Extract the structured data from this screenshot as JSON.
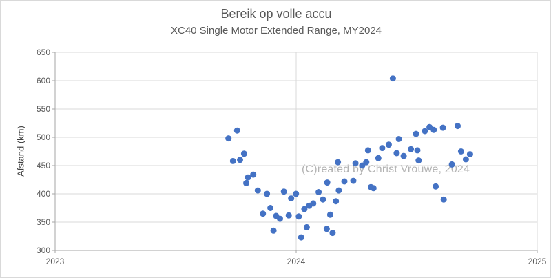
{
  "chart": {
    "title": "Bereik op volle accu",
    "subtitle": "XC40 Single Motor Extended Range, MY2024",
    "y_axis_title": "Afstand (km)",
    "watermark": "(C)reated by Christ Vrouwe, 2024"
  },
  "colors": {
    "marker": "#4472c4",
    "gridline": "#d9d9d9",
    "axis": "#a6a6a6",
    "tick_text": "#595959",
    "title_text": "#595959",
    "watermark_text": "#b3b3b3"
  },
  "chart_data": {
    "type": "scatter",
    "title": "Bereik op volle accu",
    "subtitle": "XC40 Single Motor Extended Range, MY2024",
    "xlabel": "",
    "ylabel": "Afstand (km)",
    "xlim": [
      2023,
      2025
    ],
    "ylim": [
      300,
      650
    ],
    "xticks": [
      2023,
      2024,
      2025
    ],
    "yticks": [
      300,
      350,
      400,
      450,
      500,
      550,
      600,
      650
    ],
    "grid": true,
    "legend": false,
    "marker_radius": 4.5,
    "annotations": [
      {
        "text": "(C)reated by Christ Vrouwe, 2024",
        "color": "#b3b3b3"
      }
    ],
    "series": [
      {
        "name": "Bereik op volle accu (km)",
        "points": [
          [
            2023.719,
            498
          ],
          [
            2023.738,
            458
          ],
          [
            2023.755,
            512
          ],
          [
            2023.767,
            460
          ],
          [
            2023.784,
            471
          ],
          [
            2023.793,
            419
          ],
          [
            2023.8,
            429
          ],
          [
            2023.822,
            434
          ],
          [
            2023.841,
            406
          ],
          [
            2023.862,
            365
          ],
          [
            2023.879,
            400
          ],
          [
            2023.893,
            375
          ],
          [
            2023.906,
            335
          ],
          [
            2023.917,
            361
          ],
          [
            2023.933,
            356
          ],
          [
            2023.949,
            404
          ],
          [
            2023.969,
            362
          ],
          [
            2023.979,
            392
          ],
          [
            2023.999,
            400
          ],
          [
            2024.011,
            360
          ],
          [
            2024.021,
            323
          ],
          [
            2024.034,
            373
          ],
          [
            2024.044,
            341
          ],
          [
            2024.054,
            379
          ],
          [
            2024.071,
            383
          ],
          [
            2024.093,
            403
          ],
          [
            2024.111,
            390
          ],
          [
            2024.127,
            338
          ],
          [
            2024.129,
            420
          ],
          [
            2024.141,
            363
          ],
          [
            2024.151,
            331
          ],
          [
            2024.165,
            387
          ],
          [
            2024.173,
            456
          ],
          [
            2024.177,
            406
          ],
          [
            2024.2,
            422
          ],
          [
            2024.237,
            423
          ],
          [
            2024.246,
            454
          ],
          [
            2024.274,
            450
          ],
          [
            2024.291,
            456
          ],
          [
            2024.298,
            477
          ],
          [
            2024.31,
            412
          ],
          [
            2024.321,
            410
          ],
          [
            2024.341,
            463
          ],
          [
            2024.357,
            481
          ],
          [
            2024.384,
            487
          ],
          [
            2024.401,
            604
          ],
          [
            2024.417,
            472
          ],
          [
            2024.426,
            497
          ],
          [
            2024.446,
            467
          ],
          [
            2024.476,
            479
          ],
          [
            2024.497,
            506
          ],
          [
            2024.503,
            477
          ],
          [
            2024.508,
            459
          ],
          [
            2024.534,
            511
          ],
          [
            2024.553,
            518
          ],
          [
            2024.571,
            513
          ],
          [
            2024.579,
            413
          ],
          [
            2024.609,
            517
          ],
          [
            2024.612,
            390
          ],
          [
            2024.646,
            452
          ],
          [
            2024.67,
            520
          ],
          [
            2024.684,
            475
          ],
          [
            2024.704,
            461
          ],
          [
            2024.721,
            470
          ]
        ]
      }
    ]
  }
}
